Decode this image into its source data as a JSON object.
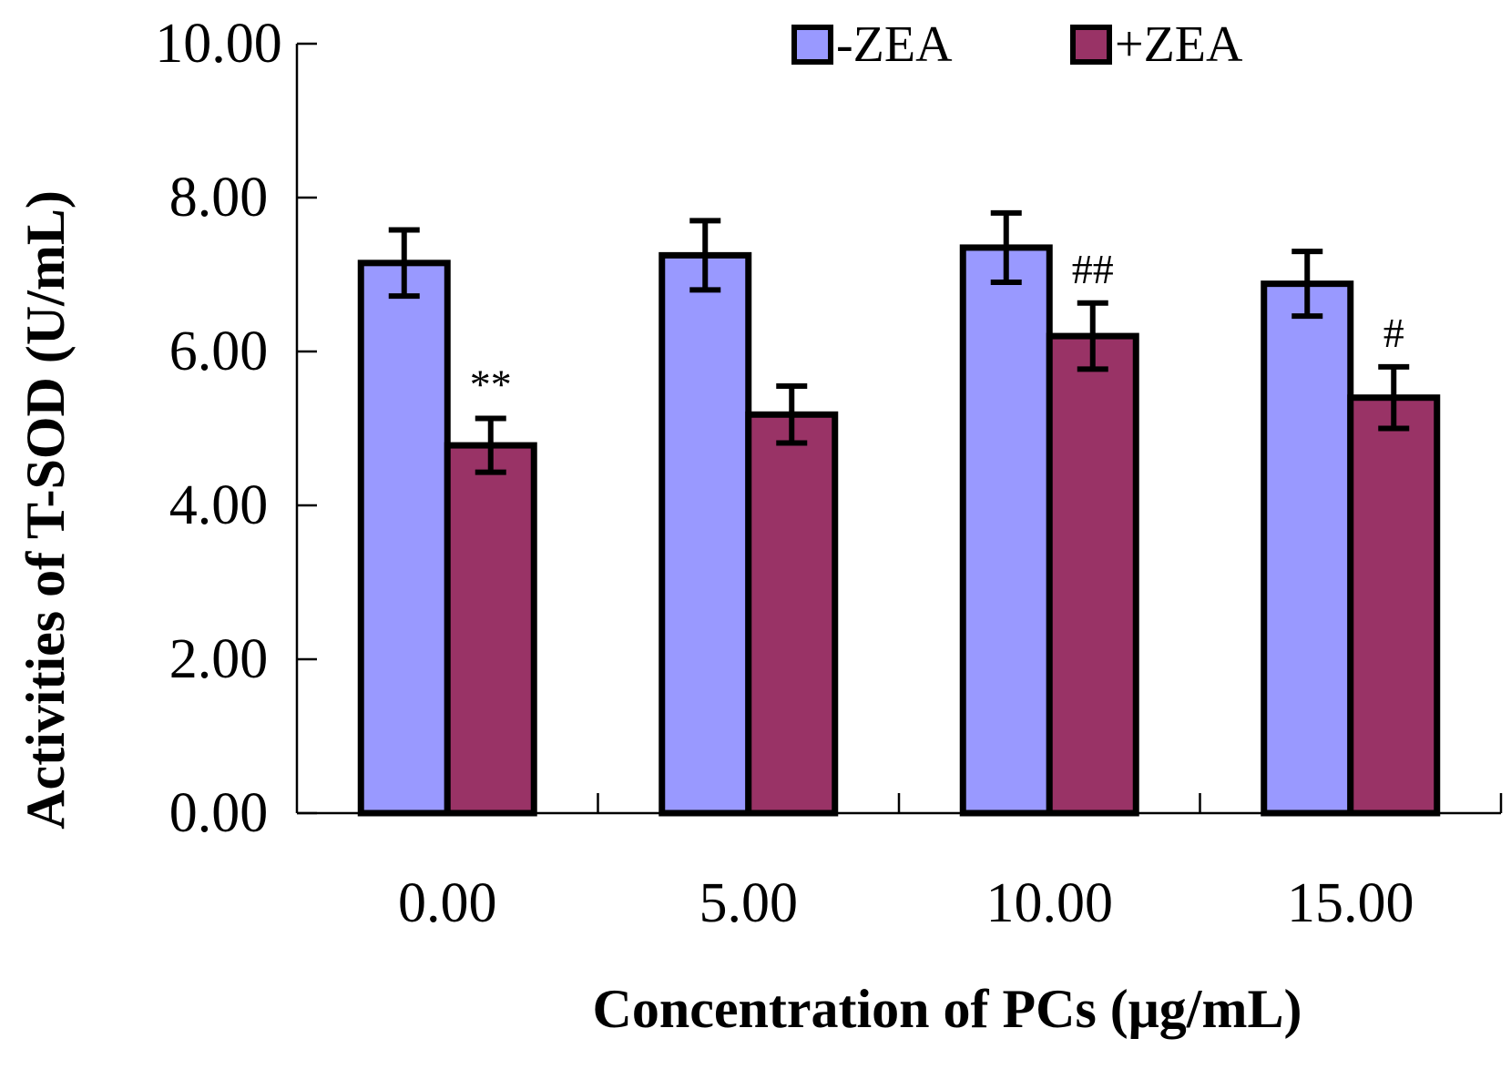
{
  "chart_data": {
    "type": "bar",
    "title": "",
    "xlabel": "Concentration of PCs (μg/mL)",
    "ylabel": "Activities  of T-SOD (U/mL)",
    "ylim": [
      0,
      10
    ],
    "yticks": [
      "0.00",
      "2.00",
      "4.00",
      "6.00",
      "8.00",
      "10.00"
    ],
    "categories": [
      "0.00",
      "5.00",
      "10.00",
      "15.00"
    ],
    "series": [
      {
        "name": "-ZEA",
        "color": "#9999ff",
        "values": [
          7.15,
          7.25,
          7.35,
          6.88
        ],
        "errors": [
          0.43,
          0.45,
          0.45,
          0.42
        ]
      },
      {
        "name": "+ZEA",
        "color": "#993366",
        "values": [
          4.78,
          5.18,
          6.2,
          5.4
        ],
        "errors": [
          0.35,
          0.37,
          0.43,
          0.4
        ]
      }
    ],
    "annotations": [
      {
        "category": "0.00",
        "series": "+ZEA",
        "text": "**"
      },
      {
        "category": "10.00",
        "series": "+ZEA",
        "text": "##"
      },
      {
        "category": "15.00",
        "series": "+ZEA",
        "text": "#"
      }
    ],
    "legend_position": "top-right",
    "grid": false
  }
}
